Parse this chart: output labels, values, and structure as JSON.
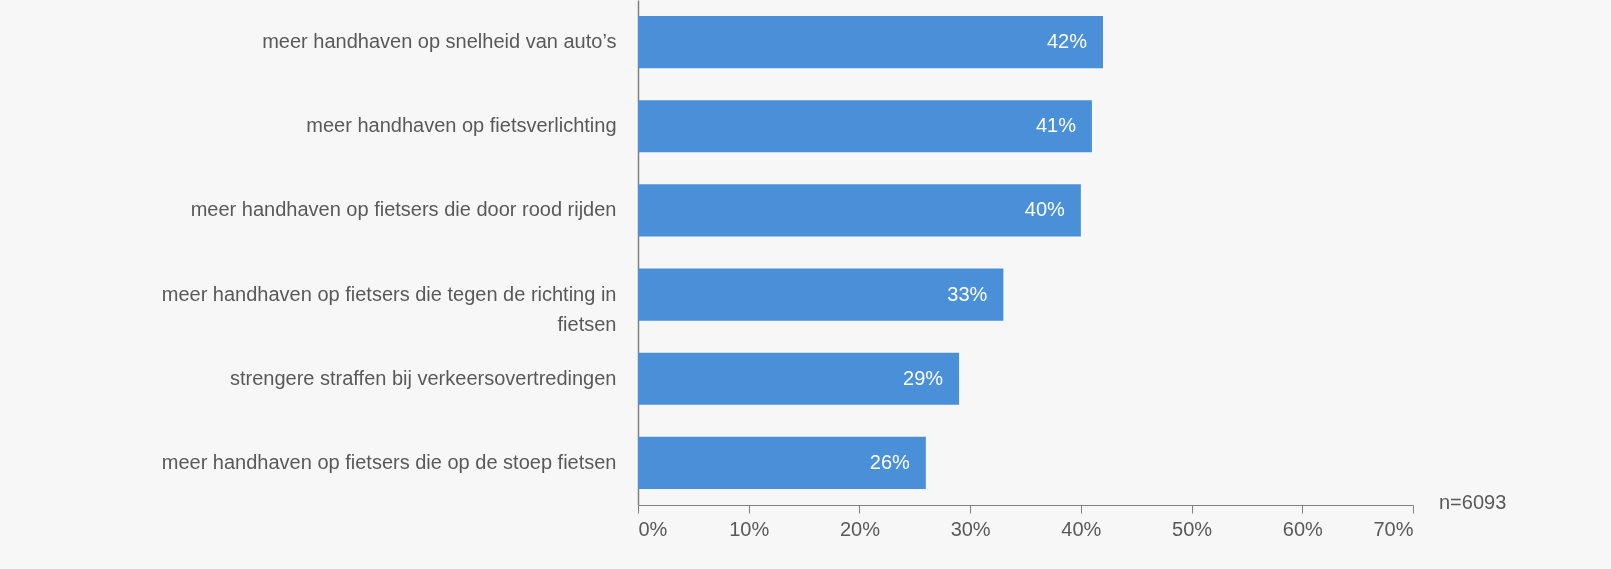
{
  "chart_data": {
    "type": "bar",
    "orientation": "horizontal",
    "categories": [
      "meer handhaven op snelheid van auto’s",
      "meer handhaven op fietsverlichting",
      "meer handhaven op fietsers die door rood rijden",
      "meer handhaven op fietsers die tegen de richting in fietsen",
      "strengere straffen bij verkeersovertredingen",
      "meer handhaven op fietsers die op de stoep fietsen"
    ],
    "values": [
      42,
      41,
      40,
      33,
      29,
      26
    ],
    "value_labels": [
      "42%",
      "41%",
      "40%",
      "33%",
      "29%",
      "26%"
    ],
    "color": "#4a90d9",
    "xlim": [
      0,
      70
    ],
    "xticks": [
      {
        "value": 0,
        "label": "0%"
      },
      {
        "value": 10,
        "label": "10%"
      },
      {
        "value": 20,
        "label": "20%"
      },
      {
        "value": 30,
        "label": "30%"
      },
      {
        "value": 40,
        "label": "40%"
      },
      {
        "value": 50,
        "label": "50%"
      },
      {
        "value": 60,
        "label": "60%"
      },
      {
        "value": 70,
        "label": "70%"
      }
    ],
    "grid": false,
    "annotations": [
      "n=6093"
    ]
  }
}
